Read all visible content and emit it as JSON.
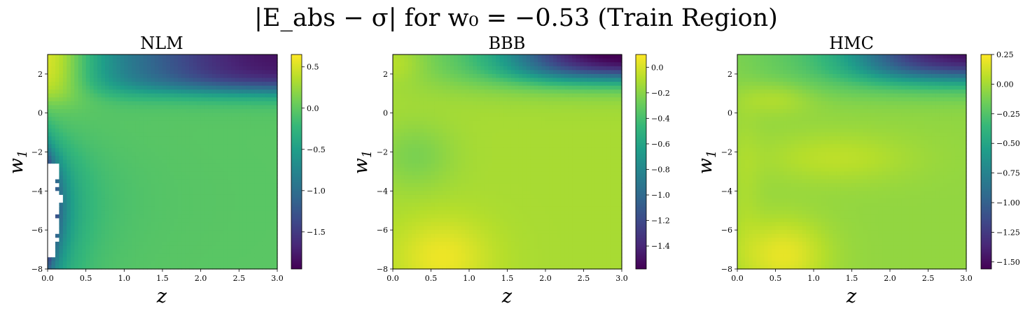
{
  "figure": {
    "suptitle": "|E_abs − σ| for w₀ = −0.53 (Train Region)"
  },
  "colors": {
    "viridis": [
      "#440154",
      "#482878",
      "#3e4989",
      "#31688e",
      "#26828e",
      "#1f9e89",
      "#35b779",
      "#6ece58",
      "#b5de2b",
      "#fde725"
    ],
    "frame": "#000000",
    "hole": "#ffffff"
  },
  "chart_data": [
    {
      "type": "heatmap",
      "title": "NLM",
      "xlabel": "z",
      "ylabel": "w_1",
      "xlim": [
        0.0,
        3.0
      ],
      "ylim": [
        -8,
        3
      ],
      "x_ticks": [
        "0.0",
        "0.5",
        "1.0",
        "1.5",
        "2.0",
        "2.5",
        "3.0"
      ],
      "y_ticks": [
        "-8",
        "-6",
        "-4",
        "-2",
        "0",
        "2"
      ],
      "colorbar": {
        "min": -1.95,
        "max": 0.65,
        "ticks": [
          -1.5,
          -1.0,
          -0.5,
          0.0,
          0.5
        ],
        "tick_labels": [
          "−1.5",
          "−1.0",
          "−0.5",
          "0.0",
          "0.5"
        ]
      },
      "field": {
        "kind": "nlm",
        "base": -0.03,
        "top_left_peak": 0.6,
        "top_right_min": -1.85,
        "left_edge_min": -1.95,
        "hole_region": {
          "z_max": 0.2,
          "w1_range": [
            -7.4,
            -2.6
          ],
          "note": "missing values"
        }
      }
    },
    {
      "type": "heatmap",
      "title": "BBB",
      "xlabel": "z",
      "ylabel": "w_1",
      "xlim": [
        0.0,
        3.0
      ],
      "ylim": [
        -8,
        3
      ],
      "x_ticks": [
        "0.0",
        "0.5",
        "1.0",
        "1.5",
        "2.0",
        "2.5",
        "3.0"
      ],
      "y_ticks": [
        "-8",
        "-6",
        "-4",
        "-2",
        "0",
        "2"
      ],
      "colorbar": {
        "min": -1.58,
        "max": 0.1,
        "ticks": [
          -1.4,
          -1.2,
          -1.0,
          -0.8,
          -0.6,
          -0.4,
          -0.2,
          0.0
        ],
        "tick_labels": [
          "−1.4",
          "−1.2",
          "−1.0",
          "−0.8",
          "−0.6",
          "−0.4",
          "−0.2",
          "0.0"
        ]
      },
      "field": {
        "kind": "bbb",
        "base": -0.12,
        "bottom_peak": 0.05,
        "top_right_min": -1.55
      }
    },
    {
      "type": "heatmap",
      "title": "HMC",
      "xlabel": "z",
      "ylabel": "w_1",
      "xlim": [
        0.0,
        3.0
      ],
      "ylim": [
        -8,
        3
      ],
      "x_ticks": [
        "0.0",
        "0.5",
        "1.0",
        "1.5",
        "2.0",
        "2.5",
        "3.0"
      ],
      "y_ticks": [
        "-8",
        "-6",
        "-4",
        "-2",
        "0",
        "2"
      ],
      "colorbar": {
        "min": -1.56,
        "max": 0.25,
        "ticks": [
          -1.5,
          -1.25,
          -1.0,
          -0.75,
          -0.5,
          -0.25,
          0.0,
          0.25
        ],
        "tick_labels": [
          "−1.50",
          "−1.25",
          "−1.00",
          "−0.75",
          "−0.50",
          "−0.25",
          "0.00",
          "0.25"
        ]
      },
      "field": {
        "kind": "hmc",
        "base": -0.05,
        "bottom_peak": 0.22,
        "top_right_min": -1.52
      }
    }
  ]
}
